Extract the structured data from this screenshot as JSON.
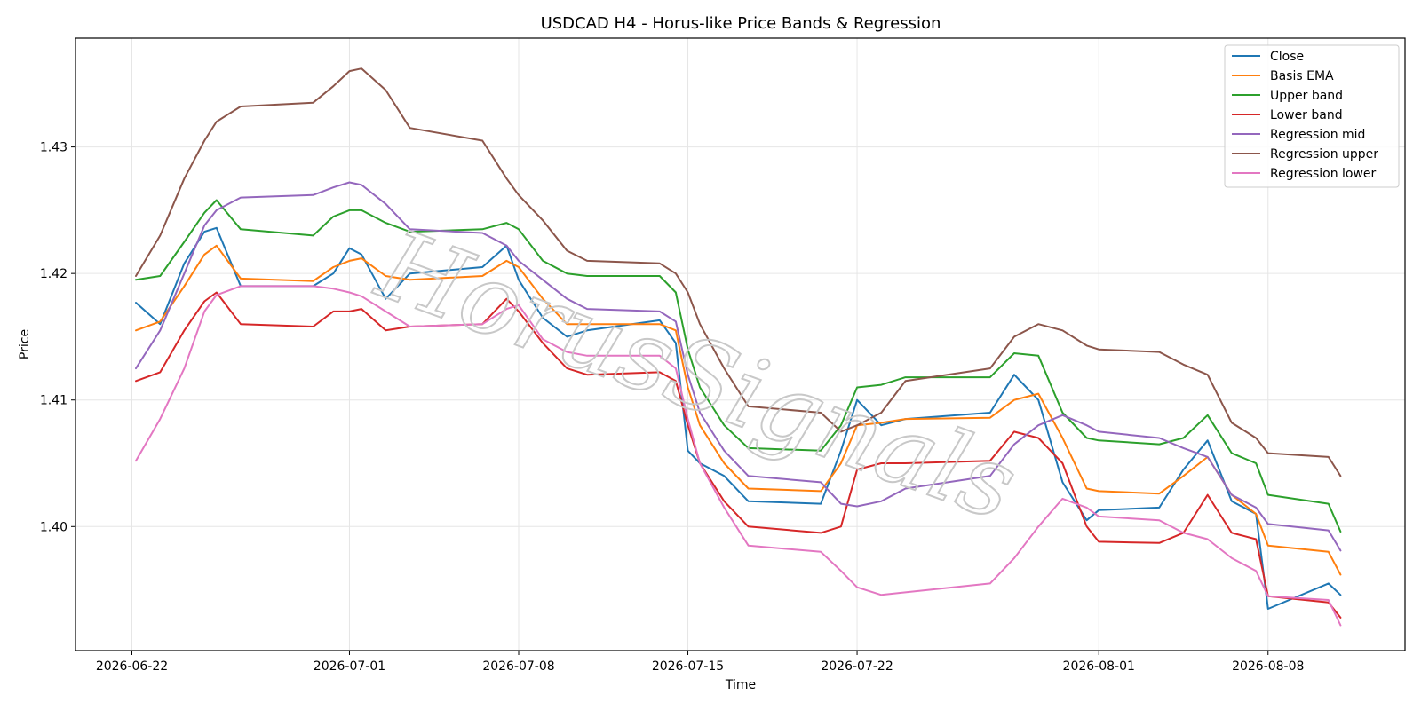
{
  "chart_data": {
    "type": "line",
    "title": "USDCAD H4 - Horus-like Price Bands & Regression",
    "xlabel": "Time",
    "ylabel": "Price",
    "watermark": "HorusSignals",
    "x_ticks": [
      {
        "date": "2026-06-22",
        "label": "2026-06-22"
      },
      {
        "date": "2026-07-01",
        "label": "2026-07-01"
      },
      {
        "date": "2026-07-08",
        "label": "2026-07-08"
      },
      {
        "date": "2026-07-15",
        "label": "2026-07-15"
      },
      {
        "date": "2026-07-22",
        "label": "2026-07-22"
      },
      {
        "date": "2026-08-01",
        "label": "2026-08-01"
      },
      {
        "date": "2026-08-08",
        "label": "2026-08-08"
      }
    ],
    "xlim": [
      "2026-06-19 16:00",
      "2026-08-13 16:00"
    ],
    "ylim": [
      1.3902,
      1.4386
    ],
    "y_ticks": [
      {
        "value": 1.4,
        "label": "1.40"
      },
      {
        "value": 1.41,
        "label": "1.41"
      },
      {
        "value": 1.42,
        "label": "1.42"
      },
      {
        "value": 1.43,
        "label": "1.43"
      }
    ],
    "grid": true,
    "legend_position": "top-right",
    "x": [
      "2026-06-22 04:00",
      "2026-06-23 04:00",
      "2026-06-24 04:00",
      "2026-06-25 00:00",
      "2026-06-25 12:00",
      "2026-06-26 12:00",
      "2026-06-29 12:00",
      "2026-06-30 08:00",
      "2026-07-01 00:00",
      "2026-07-01 12:00",
      "2026-07-02 12:00",
      "2026-07-03 12:00",
      "2026-07-06 12:00",
      "2026-07-07 12:00",
      "2026-07-08 00:00",
      "2026-07-09 00:00",
      "2026-07-10 00:00",
      "2026-07-10 20:00",
      "2026-07-13 20:00",
      "2026-07-14 12:00",
      "2026-07-15 00:00",
      "2026-07-15 12:00",
      "2026-07-16 12:00",
      "2026-07-17 12:00",
      "2026-07-20 12:00",
      "2026-07-21 08:00",
      "2026-07-22 00:00",
      "2026-07-23 00:00",
      "2026-07-24 00:00",
      "2026-07-27 12:00",
      "2026-07-28 12:00",
      "2026-07-29 12:00",
      "2026-07-30 12:00",
      "2026-07-31 12:00",
      "2026-08-01 00:00",
      "2026-08-03 12:00",
      "2026-08-04 12:00",
      "2026-08-05 12:00",
      "2026-08-06 12:00",
      "2026-08-07 12:00",
      "2026-08-08 00:00",
      "2026-08-10 12:00",
      "2026-08-11 00:00"
    ],
    "series": [
      {
        "name": "Close",
        "color": "#1f77b4",
        "values": [
          1.4177,
          1.416,
          1.4208,
          1.4233,
          1.4236,
          1.419,
          1.419,
          1.42,
          1.422,
          1.4215,
          1.418,
          1.42,
          1.4205,
          1.4222,
          1.4195,
          1.4165,
          1.415,
          1.4155,
          1.4163,
          1.4145,
          1.406,
          1.405,
          1.404,
          1.402,
          1.4018,
          1.406,
          1.41,
          1.408,
          1.4085,
          1.409,
          1.412,
          1.41,
          1.4035,
          1.4005,
          1.4013,
          1.4015,
          1.4045,
          1.4068,
          1.402,
          1.401,
          1.3935,
          1.3955,
          1.3946
        ]
      },
      {
        "name": "Basis EMA",
        "color": "#ff7f0e",
        "values": [
          1.4155,
          1.4162,
          1.419,
          1.4215,
          1.4222,
          1.4196,
          1.4194,
          1.4205,
          1.421,
          1.4212,
          1.4198,
          1.4195,
          1.4198,
          1.421,
          1.4205,
          1.418,
          1.416,
          1.416,
          1.416,
          1.4155,
          1.411,
          1.408,
          1.405,
          1.403,
          1.4028,
          1.405,
          1.408,
          1.4082,
          1.4085,
          1.4086,
          1.41,
          1.4105,
          1.407,
          1.403,
          1.4028,
          1.4026,
          1.404,
          1.4055,
          1.4025,
          1.401,
          1.3985,
          1.398,
          1.3962
        ]
      },
      {
        "name": "Upper band",
        "color": "#2ca02c",
        "values": [
          1.4195,
          1.4198,
          1.4225,
          1.4248,
          1.4258,
          1.4235,
          1.423,
          1.4245,
          1.425,
          1.425,
          1.424,
          1.4233,
          1.4235,
          1.424,
          1.4235,
          1.421,
          1.42,
          1.4198,
          1.4198,
          1.4185,
          1.414,
          1.411,
          1.408,
          1.4062,
          1.406,
          1.408,
          1.411,
          1.4112,
          1.4118,
          1.4118,
          1.4137,
          1.4135,
          1.409,
          1.407,
          1.4068,
          1.4065,
          1.407,
          1.4088,
          1.4058,
          1.405,
          1.4025,
          1.4018,
          1.3996
        ]
      },
      {
        "name": "Lower band",
        "color": "#d62728",
        "values": [
          1.4115,
          1.4122,
          1.4155,
          1.4178,
          1.4185,
          1.416,
          1.4158,
          1.417,
          1.417,
          1.4172,
          1.4155,
          1.4158,
          1.416,
          1.418,
          1.417,
          1.4145,
          1.4125,
          1.412,
          1.4122,
          1.4115,
          1.408,
          1.405,
          1.402,
          1.4,
          1.3995,
          1.4,
          1.4045,
          1.405,
          1.405,
          1.4052,
          1.4075,
          1.407,
          1.405,
          1.4,
          1.3988,
          1.3987,
          1.3995,
          1.4025,
          1.3995,
          1.399,
          1.3945,
          1.394,
          1.3928
        ]
      },
      {
        "name": "Regression mid",
        "color": "#9467bd",
        "values": [
          1.4125,
          1.4155,
          1.42,
          1.4238,
          1.425,
          1.426,
          1.4262,
          1.4268,
          1.4272,
          1.427,
          1.4255,
          1.4235,
          1.4232,
          1.4222,
          1.421,
          1.4195,
          1.418,
          1.4172,
          1.417,
          1.4162,
          1.412,
          1.409,
          1.406,
          1.404,
          1.4035,
          1.4018,
          1.4016,
          1.402,
          1.403,
          1.404,
          1.4065,
          1.408,
          1.4088,
          1.408,
          1.4075,
          1.407,
          1.4062,
          1.4055,
          1.4025,
          1.4015,
          1.4002,
          1.3997,
          1.3981
        ]
      },
      {
        "name": "Regression upper",
        "color": "#8c564b",
        "values": [
          1.4198,
          1.423,
          1.4275,
          1.4305,
          1.432,
          1.4332,
          1.4335,
          1.4348,
          1.436,
          1.4362,
          1.4345,
          1.4315,
          1.4305,
          1.4275,
          1.4262,
          1.4242,
          1.4218,
          1.421,
          1.4208,
          1.42,
          1.4185,
          1.416,
          1.4125,
          1.4095,
          1.409,
          1.4075,
          1.408,
          1.409,
          1.4115,
          1.4125,
          1.415,
          1.416,
          1.4155,
          1.4143,
          1.414,
          1.4138,
          1.4128,
          1.412,
          1.4082,
          1.407,
          1.4058,
          1.4055,
          1.404
        ]
      },
      {
        "name": "Regression lower",
        "color": "#e377c2",
        "values": [
          1.4052,
          1.4085,
          1.4125,
          1.417,
          1.4183,
          1.419,
          1.419,
          1.4188,
          1.4185,
          1.4182,
          1.417,
          1.4158,
          1.416,
          1.4172,
          1.4175,
          1.4148,
          1.4138,
          1.4135,
          1.4135,
          1.4125,
          1.4085,
          1.405,
          1.4015,
          1.3985,
          1.398,
          1.3965,
          1.3952,
          1.3946,
          1.3948,
          1.3955,
          1.3975,
          1.4,
          1.4022,
          1.4015,
          1.4008,
          1.4005,
          1.3995,
          1.399,
          1.3975,
          1.3965,
          1.3945,
          1.3942,
          1.3922
        ]
      }
    ]
  }
}
